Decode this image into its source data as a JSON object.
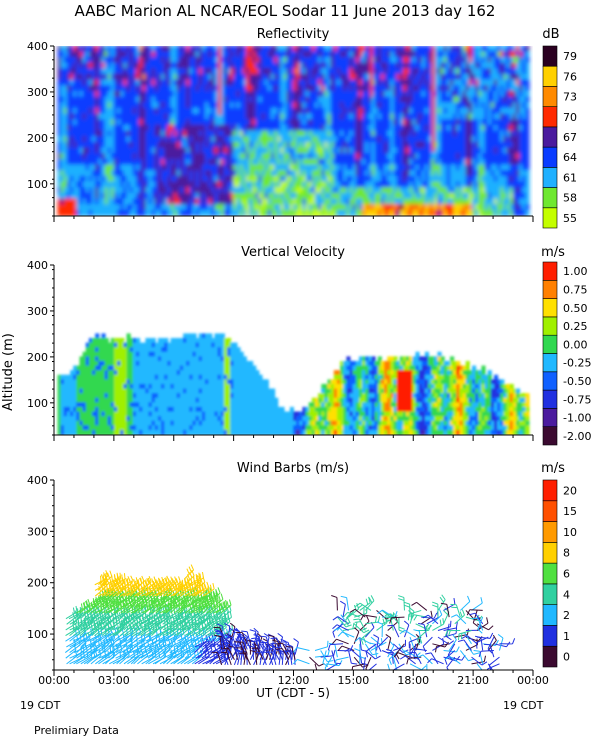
{
  "header": {
    "title": "AABC Marion AL NCAR/EOL Sodar  11 June 2013 day 162"
  },
  "footer": {
    "xlabel": "UT  (CDT - 5)",
    "left_date": "19 CDT",
    "right_date": "19 CDT",
    "note": "Prelimiary Data"
  },
  "colors": {
    "background": "#ffffff",
    "axis": "#000000"
  },
  "chart_data": [
    {
      "type": "heatmap",
      "title": "Reflectivity",
      "xlabel": "",
      "ylabel": "",
      "xlim": [
        0,
        24
      ],
      "ylim": [
        30,
        400
      ],
      "yticks": [
        100,
        200,
        300,
        400
      ],
      "xtick_labels": [],
      "colorbar": {
        "title": "dB",
        "labels": [
          "55",
          "58",
          "61",
          "64",
          "67",
          "70",
          "73",
          "76",
          "79"
        ],
        "colors": [
          "#c4ff00",
          "#6fe830",
          "#1fb0ff",
          "#0a3cff",
          "#4b1b9e",
          "#ff2a00",
          "#ff8a00",
          "#ffd000",
          "#2a0020"
        ]
      },
      "data_extent": {
        "x_start": 0.2,
        "x_end": 23.8,
        "y_bottom": 30,
        "y_top": 400
      }
    },
    {
      "type": "heatmap",
      "title": "Vertical Velocity",
      "xlabel": "",
      "ylabel": "Altitude (m)",
      "xlim": [
        0,
        24
      ],
      "ylim": [
        30,
        400
      ],
      "yticks": [
        100,
        200,
        300,
        400
      ],
      "xtick_labels": [],
      "colorbar": {
        "title": "m/s",
        "labels": [
          "-2.00",
          "-1.00",
          "-0.75",
          "-0.50",
          "-0.25",
          "0.00",
          "0.25",
          "0.50",
          "0.75",
          "1.00"
        ],
        "colors": [
          "#3b0a30",
          "#4b1b9e",
          "#2030e0",
          "#1060ff",
          "#20b8ff",
          "#30d850",
          "#a0f000",
          "#ffe000",
          "#ff8000",
          "#ff1e00"
        ]
      },
      "data_profile": {
        "hours": [
          0.2,
          1.0,
          2.0,
          3.0,
          4.0,
          5.0,
          6.0,
          7.0,
          8.0,
          9.0,
          9.6,
          10.5,
          11.5,
          12.5,
          13.5,
          14.5,
          15.5,
          16.5,
          17.5,
          18.5,
          19.5,
          20.5,
          21.5,
          22.5,
          23.8
        ],
        "top_alt_m": [
          155,
          170,
          250,
          235,
          240,
          240,
          238,
          248,
          250,
          238,
          200,
          155,
          85,
          80,
          130,
          185,
          205,
          195,
          200,
          205,
          200,
          185,
          170,
          145,
          115
        ]
      }
    },
    {
      "type": "scatter",
      "title": "Wind Barbs (m/s)",
      "xlabel": "UT  (CDT - 5)",
      "ylabel": "",
      "xlim": [
        0,
        24
      ],
      "ylim": [
        30,
        400
      ],
      "yticks": [
        100,
        200,
        300,
        400
      ],
      "xtick_labels": [
        "00:00",
        "03:00",
        "06:00",
        "09:00",
        "12:00",
        "15:00",
        "18:00",
        "21:00",
        "00:00"
      ],
      "colorbar": {
        "title": "m/s",
        "labels": [
          "0",
          "1",
          "2",
          "4",
          "6",
          "8",
          "10",
          "15",
          "20"
        ],
        "colors": [
          "#3b0a30",
          "#2030e0",
          "#20b8ff",
          "#30d0a0",
          "#50e040",
          "#ffd000",
          "#ff9a00",
          "#ff5000",
          "#ff1e00"
        ]
      },
      "regions": [
        {
          "hours": [
            0.5,
            8.5
          ],
          "alt_range_m": [
            40,
            220
          ],
          "speed": "2-8"
        },
        {
          "hours": [
            8.5,
            12.0
          ],
          "alt_range_m": [
            40,
            100
          ],
          "speed": "0-2"
        },
        {
          "hours": [
            13.5,
            22.5
          ],
          "alt_range_m": [
            40,
            160
          ],
          "speed": "0-4"
        }
      ]
    }
  ]
}
